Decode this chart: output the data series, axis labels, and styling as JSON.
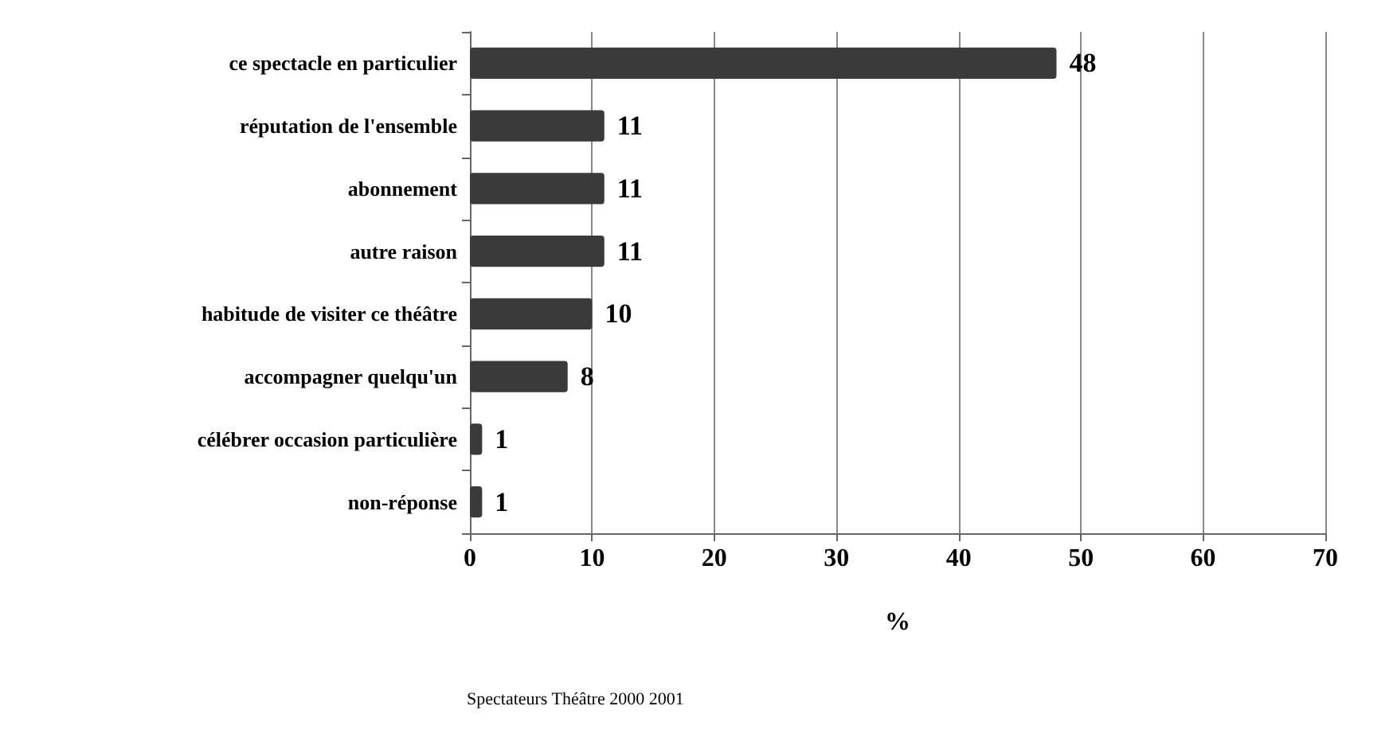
{
  "chart_data": {
    "type": "bar",
    "orientation": "horizontal",
    "xlabel": "%",
    "categories": [
      "ce spectacle en particulier",
      "réputation de l'ensemble",
      "abonnement",
      "autre raison",
      "habitude de visiter ce théâtre",
      "accompagner quelqu'un",
      "célébrer occasion particulière",
      "non-réponse"
    ],
    "values": [
      48,
      11,
      11,
      11,
      10,
      8,
      1,
      1
    ],
    "color": "#3a3a3a",
    "xlim": [
      0,
      70
    ],
    "xticks": [
      0,
      10,
      20,
      30,
      40,
      50,
      60,
      70
    ],
    "grid": "x",
    "data_labels": true,
    "annotations": [
      "Spectateurs Théâtre 2000 2001"
    ]
  }
}
